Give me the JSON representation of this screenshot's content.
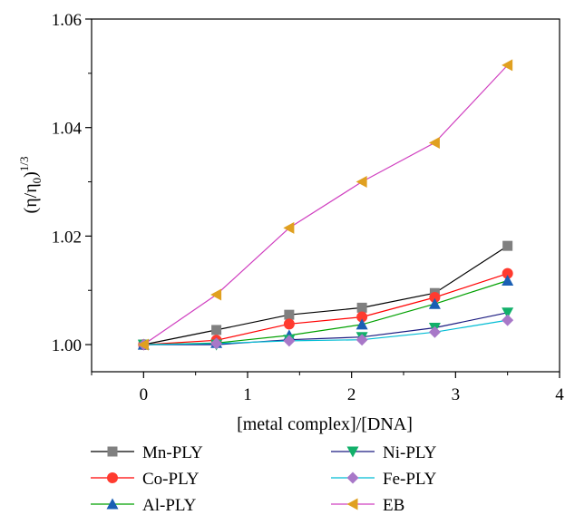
{
  "chart_data": {
    "type": "line",
    "title": "",
    "xlabel": "[metal complex]/[DNA]",
    "ylabel": "(η/η₀)¹ᐟ³",
    "ylabel_parts": {
      "main": "(η/η",
      "sub": "0",
      "close": ")",
      "sup": "1/3"
    },
    "xlim": [
      -0.5,
      4
    ],
    "ylim": [
      0.995,
      1.06
    ],
    "xticks": [
      0,
      1,
      2,
      3,
      4
    ],
    "xtick_labels": [
      "0",
      "1",
      "2",
      "3",
      "4"
    ],
    "yticks": [
      1.0,
      1.02,
      1.04,
      1.06
    ],
    "ytick_labels": [
      "1.00",
      "1.02",
      "1.04",
      "1.06"
    ],
    "grid": false,
    "legend_position": "bottom",
    "x": [
      0,
      0.7,
      1.4,
      2.1,
      2.8,
      3.5
    ],
    "series": [
      {
        "name": "Mn-PLY",
        "marker": "square",
        "line_color": "#000000",
        "marker_color": "#808080",
        "values": [
          1.0,
          1.0027,
          1.0055,
          1.0068,
          1.0095,
          1.0182
        ]
      },
      {
        "name": "Co-PLY",
        "marker": "circle",
        "line_color": "#ff0000",
        "marker_color": "#ff3b2f",
        "values": [
          1.0,
          1.0008,
          1.0038,
          1.0051,
          1.0087,
          1.0131
        ]
      },
      {
        "name": "Al-PLY",
        "marker": "triangle-up",
        "line_color": "#00a000",
        "marker_color": "#1a5fb4",
        "values": [
          1.0,
          1.0003,
          1.0017,
          1.0037,
          1.0075,
          1.0118
        ]
      },
      {
        "name": "Ni-PLY",
        "marker": "triangle-down",
        "line_color": "#1a1a80",
        "marker_color": "#12b06a",
        "values": [
          1.0,
          1.0,
          1.0009,
          1.0014,
          1.0031,
          1.0059
        ]
      },
      {
        "name": "Fe-PLY",
        "marker": "diamond",
        "line_color": "#00bcd4",
        "marker_color": "#a878c8",
        "values": [
          1.0,
          1.0002,
          1.0007,
          1.0009,
          1.0023,
          1.0045
        ]
      },
      {
        "name": "EB",
        "marker": "triangle-left",
        "line_color": "#d040c0",
        "marker_color": "#e0a020",
        "values": [
          1.0,
          1.0092,
          1.0215,
          1.03,
          1.0372,
          1.0515
        ]
      }
    ]
  }
}
